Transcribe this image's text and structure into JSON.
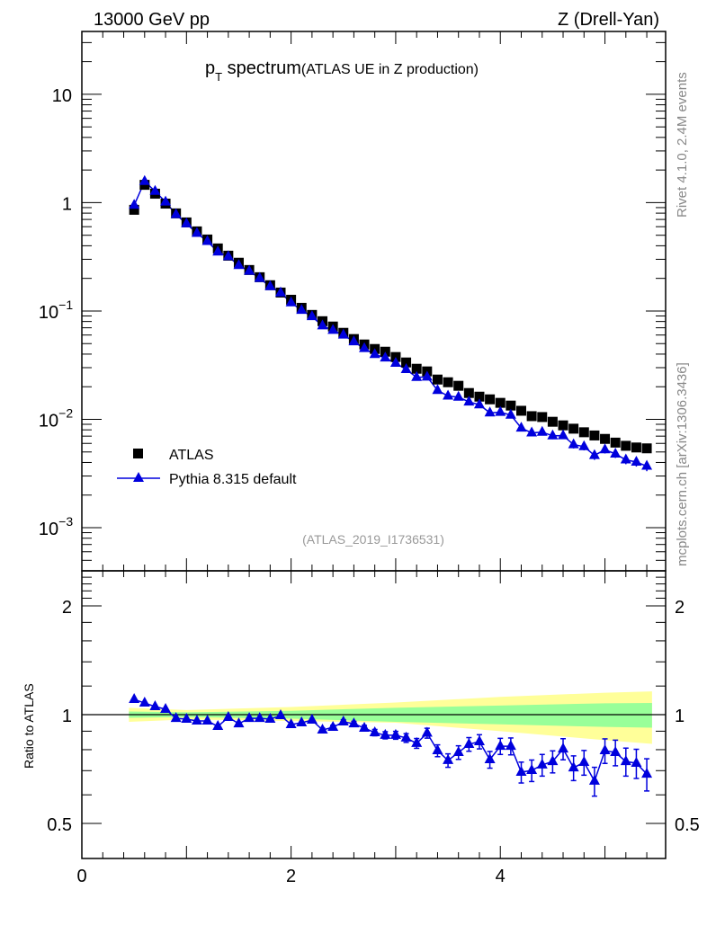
{
  "header": {
    "left": "13000 GeV pp",
    "right": "Z (Drell-Yan)"
  },
  "side": {
    "rivet": "Rivet 4.1.0,  2.4M events",
    "mcplots": "mcplots.cern.ch [arXiv:1306.3436]"
  },
  "chart_data": [
    {
      "type": "scatter",
      "title_main": "p",
      "title_sub": "T",
      "title_rest": " spectrum",
      "title_note": "(ATLAS UE in Z production)",
      "analysis_id": "(ATLAS_2019_I1736531)",
      "xlabel": "",
      "ylabel": "",
      "yscale": "log",
      "xlim": [
        0,
        5.58
      ],
      "ylim": [
        0.0004,
        38
      ],
      "ytick_labels": [
        {
          "v": 10,
          "base": "10",
          "exp": ""
        },
        {
          "v": 1,
          "base": "1",
          "exp": ""
        },
        {
          "v": 0.1,
          "base": "10",
          "exp": "−1"
        },
        {
          "v": 0.01,
          "base": "10",
          "exp": "−2"
        },
        {
          "v": 0.001,
          "base": "10",
          "exp": "−3"
        }
      ],
      "legend_placement": "lower-left",
      "x": [
        0.5,
        0.6,
        0.7,
        0.8,
        0.9,
        1.0,
        1.1,
        1.2,
        1.3,
        1.4,
        1.5,
        1.6,
        1.7,
        1.8,
        1.9,
        2.0,
        2.1,
        2.2,
        2.3,
        2.4,
        2.5,
        2.6,
        2.7,
        2.8,
        2.9,
        3.0,
        3.1,
        3.2,
        3.3,
        3.4,
        3.5,
        3.6,
        3.7,
        3.8,
        3.9,
        4.0,
        4.1,
        4.2,
        4.3,
        4.4,
        4.5,
        4.6,
        4.7,
        4.8,
        4.9,
        5.0,
        5.1,
        5.2,
        5.3,
        5.4
      ],
      "series": [
        {
          "name": "ATLAS",
          "color": "#000000",
          "marker": "square",
          "values": [
            0.859,
            1.46,
            1.21,
            0.98,
            0.796,
            0.657,
            0.543,
            0.457,
            0.378,
            0.324,
            0.279,
            0.239,
            0.205,
            0.173,
            0.148,
            0.127,
            0.107,
            0.092,
            0.0805,
            0.0719,
            0.0629,
            0.0551,
            0.0491,
            0.0446,
            0.0421,
            0.0376,
            0.0335,
            0.0293,
            0.0277,
            0.0233,
            0.022,
            0.0204,
            0.0175,
            0.0162,
            0.0153,
            0.0142,
            0.0134,
            0.012,
            0.0107,
            0.0105,
            0.0095,
            0.0088,
            0.0082,
            0.0076,
            0.0071,
            0.0066,
            0.0061,
            0.0057,
            0.0055,
            0.0054
          ]
        },
        {
          "name": "Pythia 8.315 default",
          "color": "#0000dd",
          "marker": "triangle",
          "values_note": "Pythia values = ATLAS × ratio"
        }
      ]
    },
    {
      "type": "line",
      "ylabel": "Ratio to ATLAS",
      "yscale": "log",
      "xlim": [
        0,
        5.58
      ],
      "ylim": [
        0.4,
        2.5
      ],
      "ytick_labels": [
        "2",
        "1",
        "0.5"
      ],
      "ytick_values": [
        2,
        1,
        0.5
      ],
      "xtick_labels": [
        "0",
        "2",
        "4"
      ],
      "xtick_values": [
        0,
        2,
        4
      ],
      "ratio": [
        1.102,
        1.077,
        1.053,
        1.035,
        0.977,
        0.972,
        0.961,
        0.961,
        0.928,
        0.983,
        0.944,
        0.977,
        0.977,
        0.972,
        0.994,
        0.939,
        0.95,
        0.966,
        0.907,
        0.923,
        0.955,
        0.944,
        0.918,
        0.892,
        0.877,
        0.877,
        0.862,
        0.833,
        0.889,
        0.795,
        0.747,
        0.786,
        0.828,
        0.842,
        0.751,
        0.818,
        0.818,
        0.693,
        0.701,
        0.726,
        0.742,
        0.804,
        0.713,
        0.738,
        0.655,
        0.795,
        0.786,
        0.742,
        0.734,
        0.685
      ],
      "ratio_err": [
        0.004,
        0.004,
        0.004,
        0.004,
        0.004,
        0.004,
        0.004,
        0.004,
        0.005,
        0.005,
        0.005,
        0.005,
        0.006,
        0.006,
        0.007,
        0.008,
        0.009,
        0.01,
        0.011,
        0.012,
        0.013,
        0.014,
        0.016,
        0.018,
        0.02,
        0.022,
        0.024,
        0.026,
        0.028,
        0.03,
        0.032,
        0.034,
        0.036,
        0.038,
        0.04,
        0.042,
        0.044,
        0.046,
        0.048,
        0.05,
        0.052,
        0.054,
        0.056,
        0.058,
        0.06,
        0.062,
        0.064,
        0.066,
        0.068,
        0.07
      ],
      "band_x": [
        0.45,
        1.0,
        2.0,
        3.0,
        4.0,
        5.0,
        5.45
      ],
      "band_total_hi": [
        1.045,
        1.03,
        1.05,
        1.08,
        1.12,
        1.15,
        1.16
      ],
      "band_total_lo": [
        0.955,
        0.97,
        0.96,
        0.95,
        0.9,
        0.85,
        0.83
      ],
      "band_stat_hi": [
        1.02,
        1.015,
        1.025,
        1.045,
        1.06,
        1.075,
        1.077
      ],
      "band_stat_lo": [
        0.98,
        0.985,
        0.975,
        0.955,
        0.94,
        0.925,
        0.92
      ],
      "band_total_color": "#ffff99",
      "band_stat_color": "#99ff99"
    }
  ]
}
